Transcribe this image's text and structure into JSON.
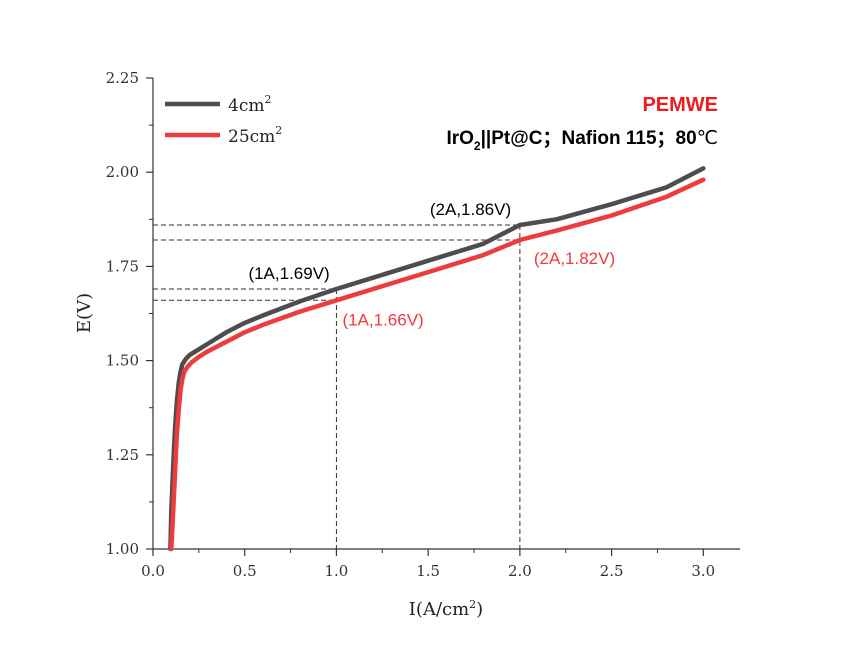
{
  "chart_data": {
    "type": "line",
    "xlabel_main": "I",
    "xlabel_unit": "(A/cm",
    "xlabel_sup": "2",
    "xlabel_close": ")",
    "ylabel": "E(V)",
    "xlim": [
      0.0,
      3.2
    ],
    "ylim": [
      1.0,
      2.25
    ],
    "x_ticks": [
      "0.0",
      "0.5",
      "1.0",
      "1.5",
      "2.0",
      "2.5",
      "3.0"
    ],
    "y_ticks": [
      "1.00",
      "1.25",
      "1.50",
      "1.75",
      "2.00",
      "2.25"
    ],
    "grid": false,
    "legend_position": "top-left",
    "series": [
      {
        "name": "4cm",
        "name_sup": "2",
        "color": "#4d4d4d",
        "x": [
          0.095,
          0.1,
          0.11,
          0.12,
          0.13,
          0.14,
          0.15,
          0.16,
          0.18,
          0.2,
          0.25,
          0.3,
          0.4,
          0.5,
          0.6,
          0.8,
          1.0,
          1.2,
          1.5,
          1.8,
          2.0,
          2.2,
          2.5,
          2.8,
          3.0
        ],
        "y": [
          1.0,
          1.1,
          1.22,
          1.32,
          1.39,
          1.44,
          1.47,
          1.49,
          1.505,
          1.515,
          1.53,
          1.545,
          1.575,
          1.6,
          1.62,
          1.657,
          1.69,
          1.72,
          1.765,
          1.81,
          1.86,
          1.875,
          1.915,
          1.96,
          2.01
        ]
      },
      {
        "name": "25cm",
        "name_sup": "2",
        "color": "#ee3b3b",
        "x": [
          0.1,
          0.11,
          0.12,
          0.13,
          0.14,
          0.15,
          0.16,
          0.17,
          0.19,
          0.21,
          0.25,
          0.3,
          0.4,
          0.5,
          0.6,
          0.8,
          1.0,
          1.2,
          1.5,
          1.8,
          2.0,
          2.2,
          2.5,
          2.8,
          3.0
        ],
        "y": [
          1.0,
          1.1,
          1.2,
          1.3,
          1.37,
          1.42,
          1.45,
          1.47,
          1.485,
          1.495,
          1.51,
          1.525,
          1.55,
          1.575,
          1.595,
          1.63,
          1.66,
          1.69,
          1.735,
          1.78,
          1.82,
          1.845,
          1.885,
          1.935,
          1.98
        ]
      }
    ],
    "annotations": [
      {
        "text": "(1A,1.69V)",
        "x": 1.0,
        "y": 1.69,
        "color": "#000000"
      },
      {
        "text": "(1A,1.66V)",
        "x": 1.0,
        "y": 1.66,
        "color": "#ee3b3b"
      },
      {
        "text": "(2A,1.86V)",
        "x": 2.0,
        "y": 1.86,
        "color": "#000000"
      },
      {
        "text": "(2A,1.82V)",
        "x": 2.0,
        "y": 1.82,
        "color": "#ee3b3b"
      }
    ],
    "headline": "PEMWE",
    "headline_color": "#ee1c1c",
    "subtitle": {
      "part1": "IrO",
      "sub": "2",
      "part2": "||Pt@C；Nafion 115；80",
      "unit": "℃"
    }
  }
}
